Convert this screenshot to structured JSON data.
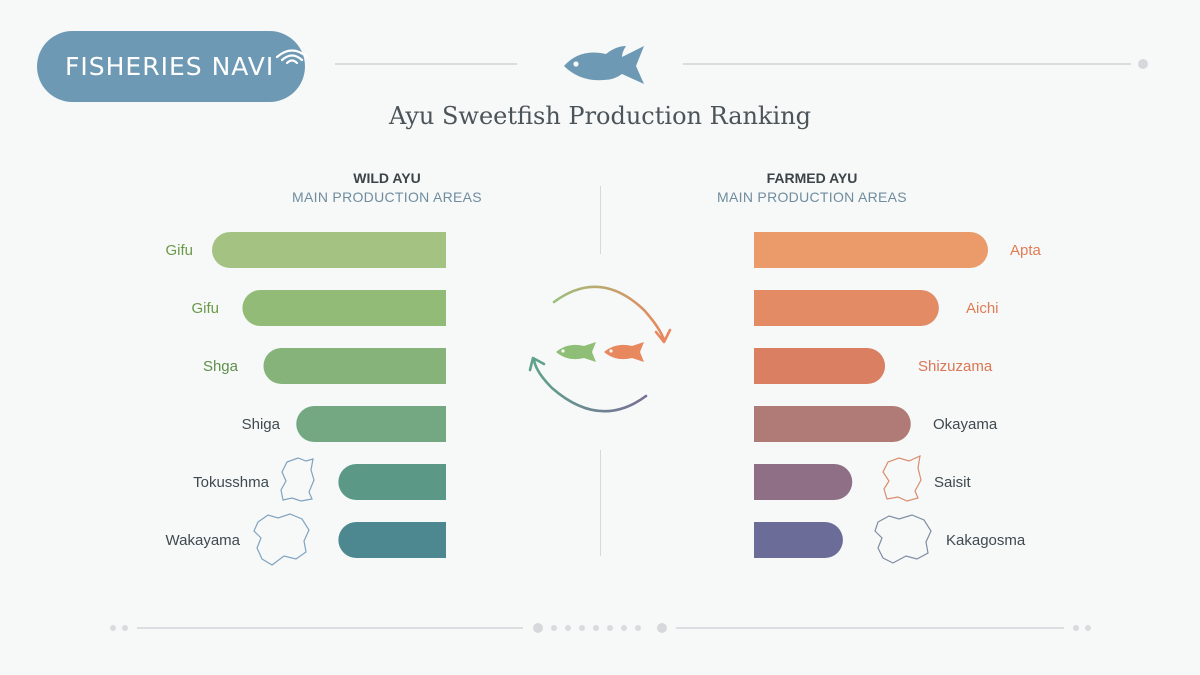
{
  "header": {
    "logo_text": "FISHERIES NAVI",
    "title": "Ayu Sweetfish Production Ranking"
  },
  "panels": {
    "wild": {
      "heading": "WILD AYU",
      "subheading": "MAIN PRODUCTION AREAS"
    },
    "farmed": {
      "heading": "FARMED AYU",
      "subheading": "MAIN PRODUCTION AREAS"
    }
  },
  "icons": [
    "fish-icon",
    "wifi-waves-icon",
    "cycle-arrows-icon",
    "prefecture-outline-icon"
  ],
  "colors": {
    "logo_bg": "#6e99b4",
    "wild_bars": [
      "#a4c383",
      "#93bb78",
      "#86b37a",
      "#74a882",
      "#5b9885",
      "#4d8790"
    ],
    "farmed_bars": [
      "#eb9b69",
      "#e28b64",
      "#da7f62",
      "#b07b77",
      "#8f6f86",
      "#6c6c98"
    ],
    "wild_label_colors": [
      "#6a9a48",
      "#6a9a48",
      "#5f8f4a",
      "#3f4a4f",
      "#3f4a4f",
      "#3f4a4f"
    ],
    "farmed_label_colors": [
      "#e07d55",
      "#e07d55",
      "#da7654",
      "#3f4a4f",
      "#3f4a4f",
      "#3f4a4f"
    ]
  },
  "chart_data": [
    {
      "type": "bar",
      "orientation": "horizontal",
      "title": "WILD AYU",
      "subtitle": "MAIN PRODUCTION AREAS",
      "categories": [
        "Gifu",
        "Gifu",
        "Shga",
        "Shiga",
        "Tokusshma",
        "Wakayama"
      ],
      "values": [
        100,
        87,
        78,
        64,
        46,
        46
      ],
      "value_unit": "relative bar length (% of longest bar, no axis shown)",
      "direction": "bars extend leftward from panel center",
      "grid": false,
      "legend": "none"
    },
    {
      "type": "bar",
      "orientation": "horizontal",
      "title": "FARMED AYU",
      "subtitle": "MAIN PRODUCTION AREAS",
      "categories": [
        "Apta",
        "Aichi",
        "Shizuzama",
        "Okayama",
        "Saisit",
        "Kakagosma"
      ],
      "values": [
        100,
        79,
        56,
        67,
        42,
        38
      ],
      "value_unit": "relative bar length (% of longest bar, no axis shown)",
      "direction": "bars extend rightward from panel center",
      "grid": false,
      "legend": "none"
    }
  ]
}
